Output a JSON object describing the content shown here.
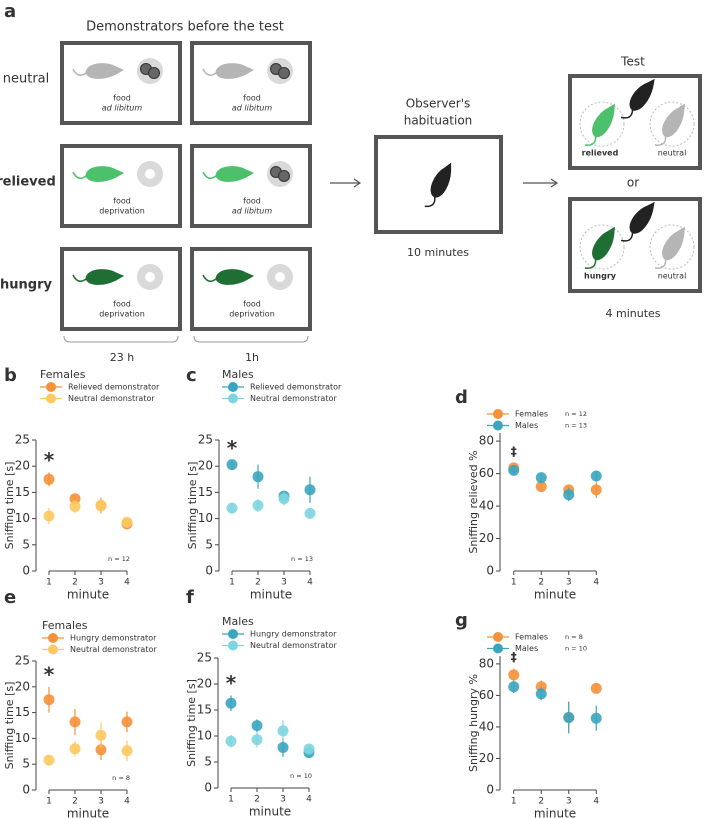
{
  "diagram": {
    "panel": "a",
    "header": "Demonstrators before the test",
    "rows": [
      {
        "label": "neutral",
        "boxes": [
          {
            "line1": "food",
            "line2": "ad libitum"
          },
          {
            "line1": "food",
            "line2": "ad libitum"
          }
        ]
      },
      {
        "label": "relieved",
        "boxes": [
          {
            "line1": "food",
            "line2": "deprivation"
          },
          {
            "line1": "food",
            "line2": "ad libitum"
          }
        ]
      },
      {
        "label": "hungry",
        "boxes": [
          {
            "line1": "food",
            "line2": "deprivation"
          },
          {
            "line1": "food",
            "line2": "deprivation"
          }
        ]
      }
    ],
    "durations": [
      "23 h",
      "1h"
    ],
    "habituation": {
      "title_line1": "Observer's",
      "title_line2": "habituation",
      "duration": "10 minutes"
    },
    "test": {
      "title": "Test",
      "or": "or",
      "trials": [
        {
          "left": "relieved",
          "right": "neutral"
        },
        {
          "left": "hungry",
          "right": "neutral"
        }
      ],
      "duration": "4 minutes"
    }
  },
  "chart_data": [
    {
      "type": "line",
      "panel": "b",
      "title": "Females",
      "xlabel": "minute",
      "ylabel": "Sniffing time [s]",
      "legend": "upper left",
      "x": [
        1,
        2,
        3,
        4
      ],
      "xlim": [
        0.5,
        4.5
      ],
      "xticks": [
        1,
        2,
        3,
        4
      ],
      "ylim": [
        0,
        25
      ],
      "yticks": [
        0,
        5,
        10,
        15,
        20,
        25
      ],
      "series": [
        {
          "name": "Relieved demonstrator",
          "color": "#f4923a",
          "values": [
            17.5,
            13.8,
            12.5,
            9.0
          ],
          "errors": [
            1.3,
            0.8,
            1.5,
            1.0
          ]
        },
        {
          "name": "Neutral demonstrator",
          "color": "#fdc960",
          "values": [
            10.5,
            12.3,
            12.5,
            9.3
          ],
          "errors": [
            1.5,
            1.3,
            1.0,
            0.8
          ]
        }
      ],
      "annotation": "*",
      "n": "n = 12"
    },
    {
      "type": "line",
      "panel": "c",
      "title": "Males",
      "xlabel": "minute",
      "ylabel": "Sniffing time [s]",
      "legend": "upper left",
      "x": [
        1,
        2,
        3,
        4
      ],
      "xlim": [
        0.5,
        4.5
      ],
      "xticks": [
        1,
        2,
        3,
        4
      ],
      "ylim": [
        0,
        25
      ],
      "yticks": [
        0,
        5,
        10,
        15,
        20,
        25
      ],
      "series": [
        {
          "name": "Relieved demonstrator",
          "color": "#3ba5bf",
          "values": [
            20.3,
            18.0,
            14.3,
            15.5
          ],
          "errors": [
            0.8,
            2.3,
            0.8,
            2.5
          ]
        },
        {
          "name": "Neutral demonstrator",
          "color": "#7ed5df",
          "values": [
            12.0,
            12.5,
            13.8,
            11.0
          ],
          "errors": [
            1.0,
            1.2,
            1.3,
            1.0
          ]
        }
      ],
      "annotation": "*",
      "n": "n = 13"
    },
    {
      "type": "line",
      "panel": "d",
      "xlabel": "minute",
      "ylabel": "Sniffing relieved %",
      "legend": "upper center",
      "x": [
        1,
        2,
        3,
        4
      ],
      "xlim": [
        0.5,
        4.5
      ],
      "xticks": [
        1,
        2,
        3,
        4
      ],
      "ylim": [
        0,
        85
      ],
      "yticks": [
        0,
        20,
        40,
        60,
        80
      ],
      "series": [
        {
          "name": "Females",
          "n": "n = 12",
          "color": "#f4923a",
          "values": [
            63.5,
            52,
            50,
            50
          ],
          "errors": [
            3,
            3,
            3,
            5
          ]
        },
        {
          "name": "Males",
          "n": "n = 13",
          "color": "#3ba5bf",
          "values": [
            62,
            57.5,
            47,
            58.5
          ],
          "errors": [
            3,
            3,
            4,
            3
          ]
        }
      ],
      "annotation": "‡"
    },
    {
      "type": "line",
      "panel": "e",
      "title": "Females",
      "xlabel": "minute",
      "ylabel": "Sniffing time [s]",
      "legend": "upper left",
      "x": [
        1,
        2,
        3,
        4
      ],
      "xlim": [
        0.5,
        4.5
      ],
      "xticks": [
        1,
        2,
        3,
        4
      ],
      "ylim": [
        0,
        25
      ],
      "yticks": [
        0,
        5,
        10,
        15,
        20,
        25
      ],
      "series": [
        {
          "name": "Hungry demonstrator",
          "color": "#f4923a",
          "values": [
            17.5,
            13.2,
            7.8,
            13.2
          ],
          "errors": [
            2.5,
            2.5,
            2.0,
            2.0
          ]
        },
        {
          "name": "Neutral demonstrator",
          "color": "#fdc960",
          "values": [
            5.8,
            8.0,
            10.6,
            7.6
          ],
          "errors": [
            0.8,
            1.5,
            2.5,
            2.0
          ]
        }
      ],
      "annotation": "*",
      "n": "n = 8"
    },
    {
      "type": "line",
      "panel": "f",
      "title": "Males",
      "xlabel": "minute",
      "ylabel": "Sniffing time [s]",
      "legend": "upper left",
      "x": [
        1,
        2,
        3,
        4
      ],
      "xlim": [
        0.5,
        4.5
      ],
      "xticks": [
        1,
        2,
        3,
        4
      ],
      "ylim": [
        0,
        25
      ],
      "yticks": [
        0,
        5,
        10,
        15,
        20,
        25
      ],
      "series": [
        {
          "name": "Hungry demonstrator",
          "color": "#3ba5bf",
          "values": [
            16.3,
            12.0,
            7.8,
            6.8
          ],
          "errors": [
            1.5,
            1.2,
            1.8,
            1.0
          ]
        },
        {
          "name": "Neutral demonstrator",
          "color": "#7ed5df",
          "values": [
            9.0,
            9.3,
            11.0,
            7.5
          ],
          "errors": [
            1.2,
            1.5,
            2.0,
            1.0
          ]
        }
      ],
      "annotation": "*",
      "n": "n = 10"
    },
    {
      "type": "line",
      "panel": "g",
      "xlabel": "minute",
      "ylabel": "Sniffing hungry %",
      "legend": "upper center",
      "x": [
        1,
        2,
        3,
        4
      ],
      "xlim": [
        0.5,
        4.5
      ],
      "xticks": [
        1,
        2,
        3,
        4
      ],
      "ylim": [
        0,
        85
      ],
      "yticks": [
        0,
        20,
        40,
        60,
        80
      ],
      "series": [
        {
          "name": "Females",
          "n": "n = 8",
          "color": "#f4923a",
          "values": [
            73,
            65.5,
            46,
            64.5
          ],
          "errors": [
            4,
            4,
            10,
            3
          ]
        },
        {
          "name": "Males",
          "n": "n = 10",
          "color": "#3ba5bf",
          "values": [
            65.5,
            61,
            46,
            45.5
          ],
          "errors": [
            4,
            4,
            10,
            8
          ]
        }
      ],
      "annotation": "‡"
    }
  ]
}
